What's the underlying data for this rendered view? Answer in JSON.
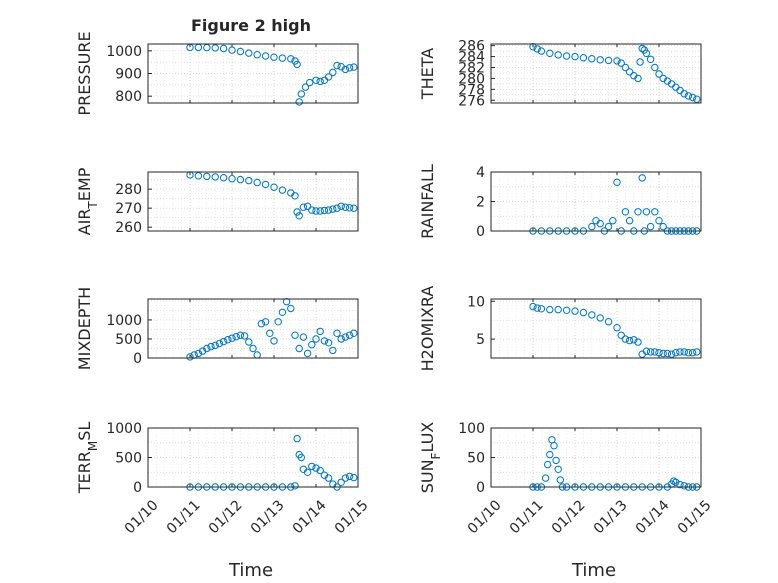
{
  "figure": {
    "title": "Figure 2 high",
    "xlabel": "Time"
  },
  "style": {
    "marker_color": "#0072BD",
    "axis_color": "#262626",
    "grid_color": "#e0e0e0"
  },
  "chart_data": [
    {
      "type": "scatter",
      "ylabel": "PRESSURE",
      "x_range": [
        "01/10",
        "01/15"
      ],
      "xticks": [
        "01/10",
        "01/11",
        "01/12",
        "01/13",
        "01/14",
        "01/15"
      ],
      "ylim": [
        770,
        1030
      ],
      "yticks": [
        800,
        900,
        1000
      ],
      "grid": true,
      "series": [
        {
          "x": [
            1.0,
            1.2,
            1.4,
            1.6,
            1.8,
            2.0,
            2.2,
            2.4,
            2.6,
            2.8,
            3.0,
            3.2,
            3.4,
            3.5,
            3.55,
            3.6,
            3.65,
            3.75,
            3.85,
            4.0,
            4.1,
            4.2,
            4.3,
            4.4,
            4.5,
            4.6,
            4.7,
            4.8,
            4.9
          ],
          "y": [
            1015,
            1015,
            1014,
            1013,
            1010,
            1003,
            997,
            990,
            983,
            977,
            972,
            968,
            965,
            955,
            940,
            775,
            810,
            840,
            860,
            870,
            865,
            870,
            885,
            905,
            935,
            930,
            918,
            925,
            928
          ]
        }
      ]
    },
    {
      "type": "scatter",
      "ylabel": "THETA",
      "x_range": [
        "01/10",
        "01/15"
      ],
      "xticks": [
        "01/10",
        "01/11",
        "01/12",
        "01/13",
        "01/14",
        "01/15"
      ],
      "ylim": [
        275.5,
        286.3
      ],
      "yticks": [
        276,
        278,
        280,
        282,
        284,
        286
      ],
      "grid": true,
      "series": [
        {
          "x": [
            1.0,
            1.1,
            1.2,
            1.4,
            1.6,
            1.8,
            2.0,
            2.2,
            2.4,
            2.6,
            2.8,
            3.0,
            3.1,
            3.2,
            3.3,
            3.4,
            3.5,
            3.55,
            3.6,
            3.65,
            3.7,
            3.8,
            3.9,
            4.0,
            4.1,
            4.2,
            4.3,
            4.4,
            4.5,
            4.6,
            4.7,
            4.8,
            4.9
          ],
          "y": [
            285.8,
            285.4,
            285.0,
            284.6,
            284.3,
            284.1,
            284.0,
            283.8,
            283.6,
            283.4,
            283.3,
            283.2,
            282.8,
            282.0,
            281.2,
            280.5,
            280.0,
            283.0,
            285.5,
            285.2,
            284.6,
            283.5,
            282.0,
            280.8,
            280.0,
            279.5,
            279.0,
            278.4,
            277.8,
            277.2,
            276.8,
            276.5,
            276.2
          ]
        }
      ]
    },
    {
      "type": "scatter",
      "ylabel": "AIR_TEMP",
      "x_range": [
        "01/10",
        "01/15"
      ],
      "xticks": [
        "01/10",
        "01/11",
        "01/12",
        "01/13",
        "01/14",
        "01/15"
      ],
      "ylim": [
        258,
        289
      ],
      "yticks": [
        260,
        270,
        280
      ],
      "grid": true,
      "series": [
        {
          "x": [
            1.0,
            1.2,
            1.4,
            1.6,
            1.8,
            2.0,
            2.2,
            2.4,
            2.6,
            2.8,
            3.0,
            3.2,
            3.4,
            3.5,
            3.55,
            3.6,
            3.7,
            3.8,
            3.9,
            4.0,
            4.1,
            4.2,
            4.3,
            4.4,
            4.5,
            4.6,
            4.7,
            4.8,
            4.9
          ],
          "y": [
            287.5,
            287.0,
            286.7,
            286.4,
            286.0,
            285.5,
            285.0,
            284.5,
            283.5,
            282.5,
            281.0,
            279.5,
            278.0,
            276.5,
            268.0,
            266.0,
            270.5,
            271.0,
            269.0,
            268.5,
            268.5,
            268.8,
            269.0,
            269.5,
            270.0,
            271.0,
            270.5,
            270.2,
            270.0
          ]
        }
      ]
    },
    {
      "type": "scatter",
      "ylabel": "RAINFALL",
      "x_range": [
        "01/10",
        "01/15"
      ],
      "xticks": [
        "01/10",
        "01/11",
        "01/12",
        "01/13",
        "01/14",
        "01/15"
      ],
      "ylim": [
        0,
        4
      ],
      "yticks": [
        0,
        2,
        4
      ],
      "grid": true,
      "series": [
        {
          "x": [
            1.0,
            1.2,
            1.4,
            1.6,
            1.8,
            2.0,
            2.2,
            2.4,
            2.5,
            2.6,
            2.7,
            2.8,
            2.9,
            3.0,
            3.1,
            3.2,
            3.3,
            3.4,
            3.5,
            3.6,
            3.65,
            3.7,
            3.8,
            3.9,
            4.0,
            4.1,
            4.2,
            4.3,
            4.4,
            4.5,
            4.6,
            4.7,
            4.8,
            4.9
          ],
          "y": [
            0,
            0,
            0,
            0,
            0,
            0,
            0,
            0.3,
            0.7,
            0.5,
            0,
            0.3,
            0.7,
            3.3,
            0,
            1.3,
            0.7,
            0,
            1.3,
            3.6,
            0,
            1.3,
            0.3,
            1.3,
            0.7,
            0.3,
            0,
            0,
            0,
            0,
            0,
            0,
            0,
            0
          ]
        }
      ]
    },
    {
      "type": "scatter",
      "ylabel": "MIXDEPTH",
      "x_range": [
        "01/10",
        "01/15"
      ],
      "xticks": [
        "01/10",
        "01/11",
        "01/12",
        "01/13",
        "01/14",
        "01/15"
      ],
      "ylim": [
        0,
        1550
      ],
      "yticks": [
        0,
        500,
        1000
      ],
      "grid": true,
      "series": [
        {
          "x": [
            1.0,
            1.1,
            1.2,
            1.3,
            1.4,
            1.5,
            1.6,
            1.7,
            1.8,
            1.9,
            2.0,
            2.1,
            2.2,
            2.3,
            2.4,
            2.5,
            2.6,
            2.7,
            2.8,
            2.9,
            3.0,
            3.1,
            3.2,
            3.3,
            3.4,
            3.5,
            3.6,
            3.7,
            3.8,
            3.9,
            4.0,
            4.1,
            4.2,
            4.3,
            4.4,
            4.5,
            4.6,
            4.7,
            4.8,
            4.9
          ],
          "y": [
            30,
            80,
            120,
            180,
            250,
            300,
            330,
            380,
            430,
            480,
            520,
            560,
            600,
            580,
            420,
            250,
            80,
            900,
            950,
            650,
            450,
            950,
            1200,
            1480,
            1300,
            600,
            250,
            550,
            120,
            350,
            500,
            700,
            450,
            400,
            200,
            650,
            500,
            550,
            600,
            650
          ]
        }
      ]
    },
    {
      "type": "scatter",
      "ylabel": "H2OMIXRA",
      "x_range": [
        "01/10",
        "01/15"
      ],
      "xticks": [
        "01/10",
        "01/11",
        "01/12",
        "01/13",
        "01/14",
        "01/15"
      ],
      "ylim": [
        2.5,
        10.3
      ],
      "yticks": [
        5,
        10
      ],
      "grid": true,
      "series": [
        {
          "x": [
            1.0,
            1.1,
            1.2,
            1.4,
            1.6,
            1.8,
            2.0,
            2.2,
            2.4,
            2.6,
            2.8,
            3.0,
            3.1,
            3.2,
            3.3,
            3.4,
            3.5,
            3.6,
            3.7,
            3.8,
            3.9,
            4.0,
            4.1,
            4.2,
            4.3,
            4.4,
            4.5,
            4.6,
            4.7,
            4.8,
            4.9
          ],
          "y": [
            9.3,
            9.1,
            9.0,
            8.9,
            8.9,
            8.8,
            8.7,
            8.5,
            8.2,
            7.8,
            7.3,
            6.5,
            5.5,
            5.0,
            4.8,
            4.9,
            4.6,
            3.0,
            3.4,
            3.3,
            3.3,
            3.2,
            3.1,
            3.1,
            3.0,
            3.2,
            3.3,
            3.3,
            3.2,
            3.2,
            3.3
          ]
        }
      ]
    },
    {
      "type": "scatter",
      "ylabel": "TERR_MSL",
      "x_range": [
        "01/10",
        "01/15"
      ],
      "xticks": [
        "01/10",
        "01/11",
        "01/12",
        "01/13",
        "01/14",
        "01/15"
      ],
      "ylim": [
        0,
        1000
      ],
      "yticks": [
        0,
        500,
        1000
      ],
      "grid": true,
      "series": [
        {
          "x": [
            1.0,
            1.2,
            1.4,
            1.6,
            1.8,
            2.0,
            2.2,
            2.4,
            2.6,
            2.8,
            3.0,
            3.2,
            3.4,
            3.5,
            3.55,
            3.6,
            3.65,
            3.7,
            3.8,
            3.9,
            4.0,
            4.1,
            4.2,
            4.3,
            4.4,
            4.5,
            4.6,
            4.7,
            4.8,
            4.9
          ],
          "y": [
            0,
            0,
            0,
            0,
            0,
            0,
            0,
            0,
            0,
            0,
            0,
            0,
            0,
            20,
            820,
            550,
            500,
            300,
            250,
            350,
            320,
            280,
            200,
            150,
            50,
            0,
            80,
            150,
            180,
            160
          ]
        }
      ]
    },
    {
      "type": "scatter",
      "ylabel": "SUN_FLUX",
      "x_range": [
        "01/10",
        "01/15"
      ],
      "xticks": [
        "01/10",
        "01/11",
        "01/12",
        "01/13",
        "01/14",
        "01/15"
      ],
      "ylim": [
        0,
        100
      ],
      "yticks": [
        0,
        50,
        100
      ],
      "grid": true,
      "series": [
        {
          "x": [
            1.0,
            1.1,
            1.2,
            1.3,
            1.35,
            1.4,
            1.45,
            1.5,
            1.55,
            1.6,
            1.65,
            1.7,
            1.8,
            2.0,
            2.2,
            2.4,
            2.6,
            2.8,
            3.0,
            3.2,
            3.4,
            3.6,
            3.8,
            4.0,
            4.2,
            4.3,
            4.35,
            4.4,
            4.5,
            4.6,
            4.7,
            4.8,
            4.9
          ],
          "y": [
            0,
            0,
            0,
            15,
            38,
            55,
            80,
            70,
            45,
            30,
            12,
            0,
            0,
            0,
            0,
            0,
            0,
            0,
            0,
            0,
            0,
            0,
            0,
            0,
            0,
            5,
            10,
            8,
            4,
            2,
            0,
            0,
            0
          ]
        }
      ]
    }
  ]
}
